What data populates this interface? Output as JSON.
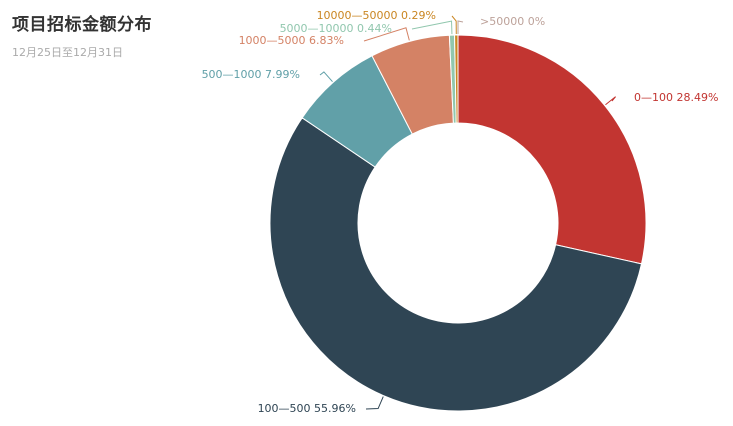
{
  "title": "项目招标金额分布",
  "subtitle": "12月25日至12月31日",
  "chart_data": {
    "type": "pie",
    "donut": true,
    "title": "项目招标金额分布",
    "subtitle": "12月25日至12月31日",
    "slices": [
      {
        "name": "0—100",
        "value": 28.49,
        "label": "0—100 28.49%",
        "color": "#c23531"
      },
      {
        "name": "100—500",
        "value": 55.96,
        "label": "100—500 55.96%",
        "color": "#2f4554"
      },
      {
        "name": "500—1000",
        "value": 7.99,
        "label": "500—1000 7.99%",
        "color": "#61a0a8"
      },
      {
        "name": "1000—5000",
        "value": 6.83,
        "label": "1000—5000 6.83%",
        "color": "#d48265"
      },
      {
        "name": "5000—10000",
        "value": 0.44,
        "label": "5000—10000 0.44%",
        "color": "#91c7ae"
      },
      {
        "name": "10000—50000",
        "value": 0.29,
        "label": "10000—50000 0.29%",
        "color": "#ca8622"
      },
      {
        "name": ">50000",
        "value": 0,
        "label": ">50000 0%",
        "color": "#bda29a"
      }
    ]
  }
}
